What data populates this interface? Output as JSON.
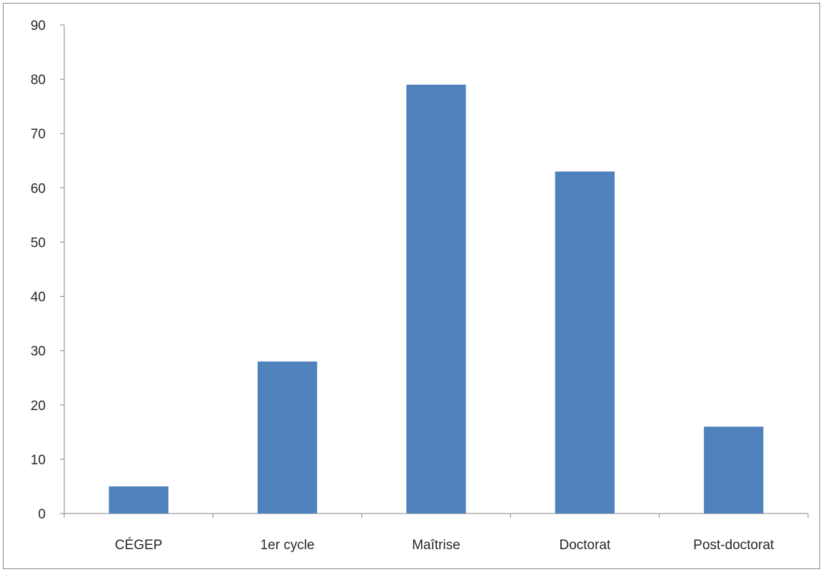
{
  "chart_data": {
    "type": "bar",
    "categories": [
      "CÉGEP",
      "1er cycle",
      "Maîtrise",
      "Doctorat",
      "Post-doctorat"
    ],
    "values": [
      5,
      28,
      79,
      63,
      16
    ],
    "ylim": [
      0,
      90
    ],
    "yticks": [
      0,
      10,
      20,
      30,
      40,
      50,
      60,
      70,
      80,
      90
    ],
    "grid": false,
    "legend": "none",
    "bar_color": "#4F81BD",
    "axis_color": "#868686",
    "text_color": "#262626"
  }
}
